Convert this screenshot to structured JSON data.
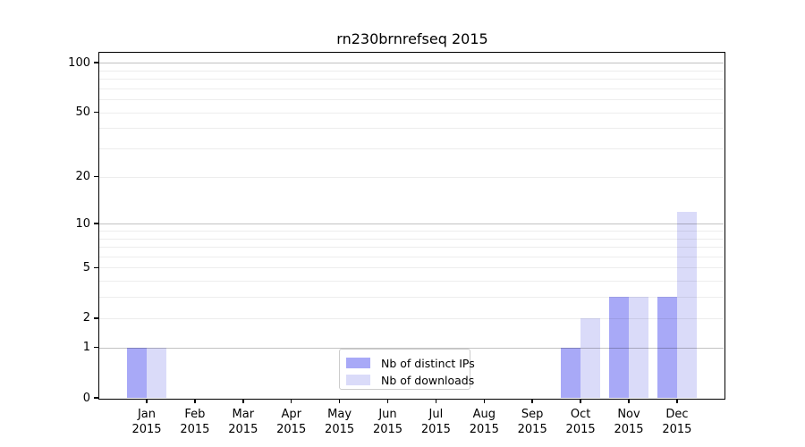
{
  "title": "rn230brnrefseq 2015",
  "legend": {
    "items": [
      {
        "label": "Nb of distinct IPs",
        "color": "#a8a9f7"
      },
      {
        "label": "Nb of downloads",
        "color": "#dadbf9"
      }
    ]
  },
  "chart_data": {
    "type": "bar",
    "title": "rn230brnrefseq 2015",
    "categories": [
      {
        "month": "Jan",
        "year": "2015"
      },
      {
        "month": "Feb",
        "year": "2015"
      },
      {
        "month": "Mar",
        "year": "2015"
      },
      {
        "month": "Apr",
        "year": "2015"
      },
      {
        "month": "May",
        "year": "2015"
      },
      {
        "month": "Jun",
        "year": "2015"
      },
      {
        "month": "Jul",
        "year": "2015"
      },
      {
        "month": "Aug",
        "year": "2015"
      },
      {
        "month": "Sep",
        "year": "2015"
      },
      {
        "month": "Oct",
        "year": "2015"
      },
      {
        "month": "Nov",
        "year": "2015"
      },
      {
        "month": "Dec",
        "year": "2015"
      }
    ],
    "series": [
      {
        "name": "Nb of distinct IPs",
        "color": "#a8a9f7",
        "values": [
          1,
          0,
          0,
          0,
          0,
          0,
          0,
          0,
          0,
          1,
          3,
          3
        ]
      },
      {
        "name": "Nb of downloads",
        "color": "#dadbf9",
        "values": [
          1,
          0,
          0,
          0,
          0,
          0,
          0,
          0,
          0,
          2,
          3,
          12
        ]
      }
    ],
    "xlabel": "",
    "ylabel": "",
    "y_scale": "log10(1+v)",
    "y_ticks": [
      0,
      1,
      2,
      5,
      10,
      20,
      50,
      100
    ],
    "y_major_gridlines": [
      1,
      10,
      100
    ],
    "y_minor_gridlines": [
      2,
      3,
      4,
      5,
      6,
      7,
      8,
      9,
      20,
      30,
      40,
      50,
      60,
      70,
      80,
      90
    ],
    "ylim": [
      0,
      113
    ],
    "grid": true,
    "legend_position": "lower center"
  }
}
